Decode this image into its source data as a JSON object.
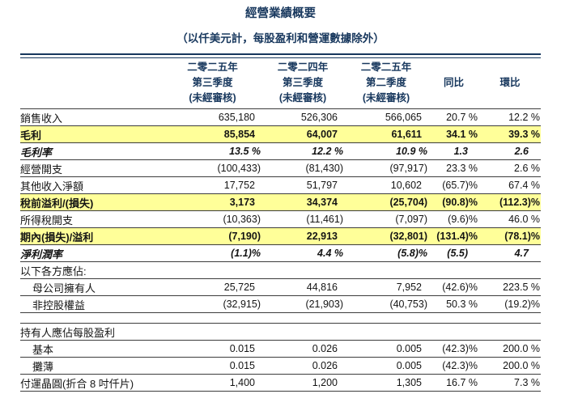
{
  "title": "經營業績概要",
  "subtitle": "（以仟美元計，每股盈利和營運數據除外）",
  "colors": {
    "accent_navy": "#17375d",
    "highlight_yellow": "#ffff99",
    "rule_dark": "#3c3c3c"
  },
  "table": {
    "header": {
      "columns": [
        {
          "line1": "二零二五年",
          "line2": "第三季度",
          "line3": "(未經審核)"
        },
        {
          "line1": "二零二四年",
          "line2": "第三季度",
          "line3": "(未經審核)"
        },
        {
          "line1": "二零二五年",
          "line2": "第二季度",
          "line3": "(未經審核)"
        },
        {
          "line1": "",
          "line2": "同比",
          "line3": ""
        },
        {
          "line1": "",
          "line2": "環比",
          "line3": ""
        }
      ]
    },
    "rows": [
      {
        "label": "銷售收入",
        "style": "normal",
        "values": [
          "635,180",
          "526,306",
          "566,065",
          "20.7 %",
          "12.2 %"
        ]
      },
      {
        "label": "毛利",
        "style": "highlight",
        "values": [
          "85,854",
          "64,007",
          "61,611",
          "34.1 %",
          "39.3 %"
        ]
      },
      {
        "label": "毛利率",
        "style": "italic",
        "values": [
          "13.5 %",
          "12.2 %",
          "10.9 %",
          "1.3",
          "2.6"
        ]
      },
      {
        "label": "經營開支",
        "style": "normal",
        "values": [
          "(100,433)",
          "(81,430)",
          "(97,917)",
          "23.3 %",
          "2.6 %"
        ]
      },
      {
        "label": "其他收入淨額",
        "style": "normal",
        "values": [
          "17,752",
          "51,797",
          "10,602",
          "(65.7)%",
          "67.4 %"
        ]
      },
      {
        "label": "稅前溢利/(損失)",
        "style": "highlight",
        "values": [
          "3,173",
          "34,374",
          "(25,704)",
          "(90.8)%",
          "(112.3)%"
        ]
      },
      {
        "label": "所得稅開支",
        "style": "normal",
        "values": [
          "(10,363)",
          "(11,461)",
          "(7,097)",
          "(9.6)%",
          "46.0 %"
        ]
      },
      {
        "label": "期內(損失)/溢利",
        "style": "highlight",
        "values": [
          "(7,190)",
          "22,913",
          "(32,801)",
          "(131.4)%",
          "(78.1)%"
        ]
      },
      {
        "label": "淨利潤率",
        "style": "italic",
        "values": [
          "(1.1)%",
          "4.4 %",
          "(5.8)%",
          "(5.5)",
          "4.7"
        ]
      },
      {
        "label": "以下各方應佔:",
        "style": "section",
        "values": [
          "",
          "",
          "",
          "",
          ""
        ]
      },
      {
        "label": "母公司擁有人",
        "style": "indent",
        "values": [
          "25,725",
          "44,816",
          "7,952",
          "(42.6)%",
          "223.5 %"
        ]
      },
      {
        "label": "非控股權益",
        "style": "indent",
        "values": [
          "(32,915)",
          "(21,903)",
          "(40,753)",
          "50.3 %",
          "(19.2)%"
        ]
      },
      {
        "label": "",
        "style": "spacer",
        "values": [
          "",
          "",
          "",
          "",
          ""
        ]
      },
      {
        "label": "持有人應佔每股盈利",
        "style": "section",
        "values": [
          "",
          "",
          "",
          "",
          ""
        ]
      },
      {
        "label": "基本",
        "style": "indent",
        "values": [
          "0.015",
          "0.026",
          "0.005",
          "(42.3)%",
          "200.0 %"
        ]
      },
      {
        "label": "攤薄",
        "style": "indent",
        "values": [
          "0.015",
          "0.026",
          "0.005",
          "(42.3)%",
          "200.0 %"
        ]
      },
      {
        "label": "付運晶圓(折合 8 吋仟片)",
        "style": "normal",
        "values": [
          "1,400",
          "1,200",
          "1,305",
          "16.7 %",
          "7.3 %"
        ]
      }
    ]
  }
}
